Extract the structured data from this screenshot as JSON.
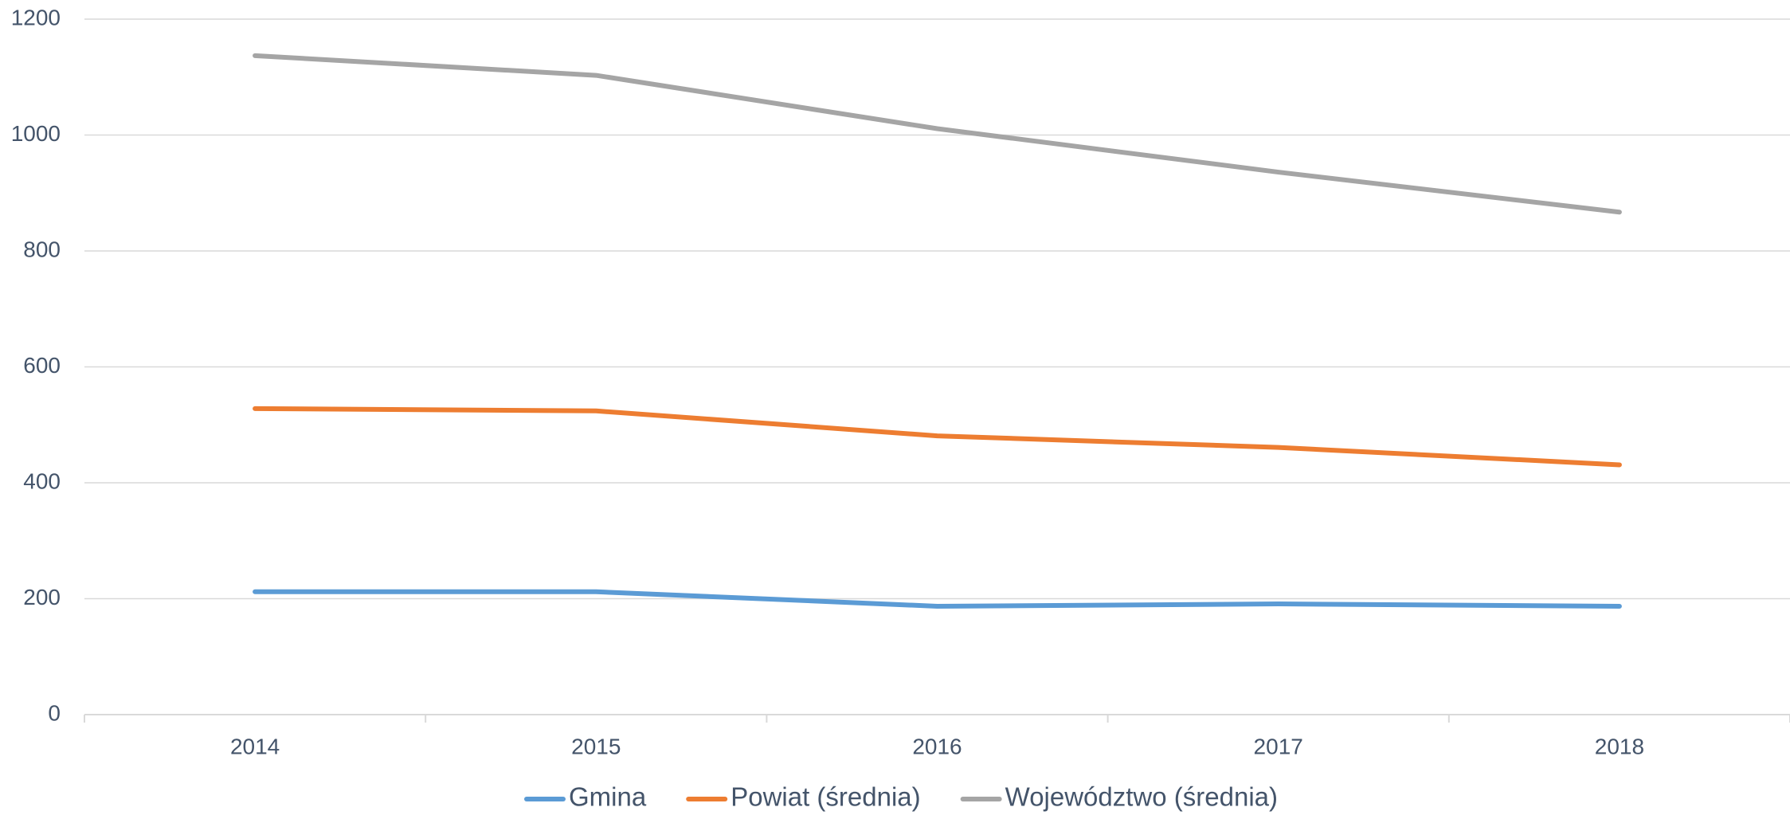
{
  "chart_data": {
    "type": "line",
    "categories": [
      "2014",
      "2015",
      "2016",
      "2017",
      "2018"
    ],
    "series": [
      {
        "name": "Gmina",
        "color": "#5b9bd5",
        "values": [
          212,
          212,
          187,
          191,
          187
        ]
      },
      {
        "name": "Powiat (średnia)",
        "color": "#ed7d31",
        "values": [
          528,
          524,
          481,
          461,
          431
        ]
      },
      {
        "name": "Województwo (średnia)",
        "color": "#a5a5a5",
        "values": [
          1137,
          1103,
          1011,
          936,
          867
        ]
      }
    ],
    "ylim": [
      0,
      1200
    ],
    "yticks": [
      0,
      200,
      400,
      600,
      800,
      1000,
      1200
    ],
    "grid": true,
    "legend": "bottom"
  }
}
